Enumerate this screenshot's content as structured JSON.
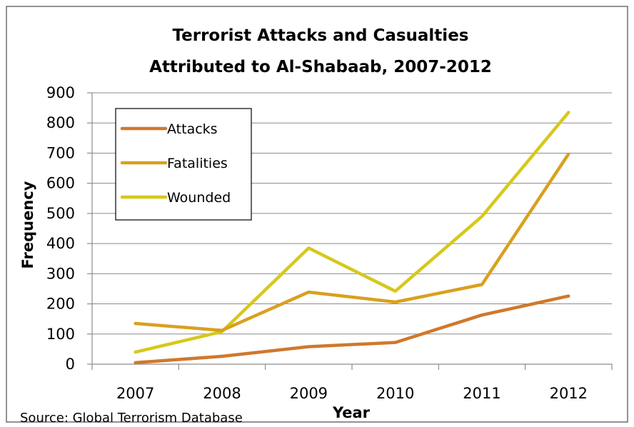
{
  "chart_data": {
    "type": "line",
    "title": [
      "Terrorist Attacks and Casualties",
      "Attributed to Al-Shabaab, 2007-2012"
    ],
    "xlabel": "Year",
    "ylabel": "Frequency",
    "source": "Source: Global Terrorism Database",
    "categories": [
      "2007",
      "2008",
      "2009",
      "2010",
      "2011",
      "2012"
    ],
    "yticks": [
      "0",
      "100",
      "200",
      "300",
      "400",
      "500",
      "600",
      "700",
      "800",
      "900"
    ],
    "ylim": [
      0,
      900
    ],
    "grid": true,
    "legend_position": "top-left",
    "series": [
      {
        "name": "Attacks",
        "color": "#D0782C",
        "values": [
          5,
          26,
          58,
          72,
          163,
          226
        ]
      },
      {
        "name": "Fatalities",
        "color": "#D9A020",
        "values": [
          135,
          112,
          239,
          206,
          264,
          697
        ]
      },
      {
        "name": "Wounded",
        "color": "#D6C81C",
        "values": [
          40,
          108,
          385,
          242,
          490,
          835
        ]
      }
    ]
  }
}
